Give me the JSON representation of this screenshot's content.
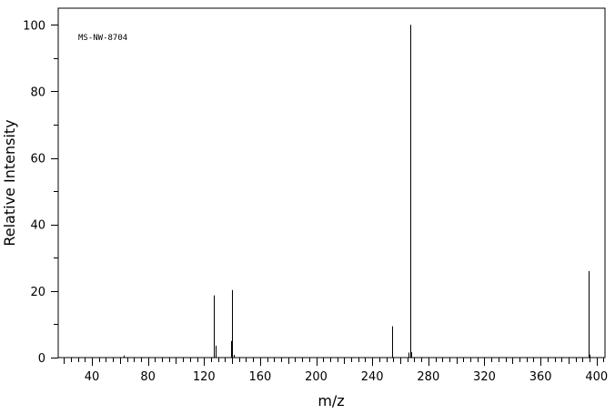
{
  "chart_data": {
    "type": "bar",
    "title": "",
    "annotation": "MS-NW-8704",
    "xlabel": "m/z",
    "ylabel": "Relative Intensity",
    "xlim": [
      16,
      406
    ],
    "ylim": [
      0,
      105
    ],
    "x_ticks": [
      40,
      80,
      120,
      160,
      200,
      240,
      280,
      320,
      360,
      400
    ],
    "y_ticks": [
      0,
      20,
      40,
      60,
      80,
      100
    ],
    "grid": false,
    "legend": "none",
    "peaks": [
      {
        "mz": 63,
        "intensity": 0.6
      },
      {
        "mz": 127,
        "intensity": 18.7
      },
      {
        "mz": 128,
        "intensity": 3.6
      },
      {
        "mz": 139,
        "intensity": 5.0
      },
      {
        "mz": 140,
        "intensity": 20.3
      },
      {
        "mz": 141,
        "intensity": 0.8
      },
      {
        "mz": 254,
        "intensity": 9.4
      },
      {
        "mz": 266,
        "intensity": 1.5
      },
      {
        "mz": 267,
        "intensity": 100.0
      },
      {
        "mz": 268,
        "intensity": 1.6
      },
      {
        "mz": 394,
        "intensity": 26.0
      },
      {
        "mz": 395,
        "intensity": 0.9
      }
    ]
  }
}
